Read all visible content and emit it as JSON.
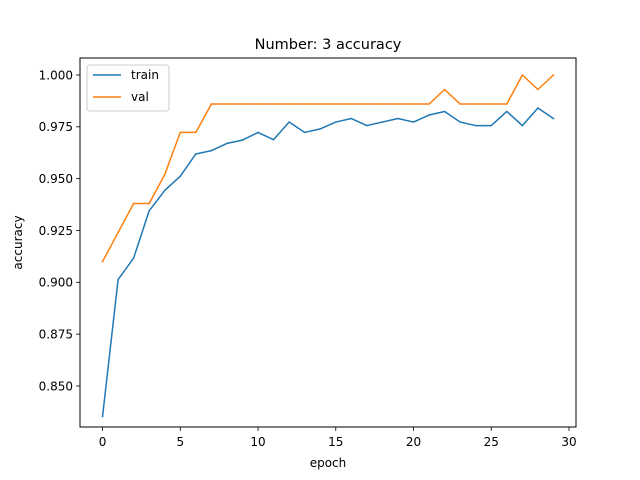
{
  "chart_data": {
    "type": "line",
    "title": "Number: 3 accuracy",
    "xlabel": "epoch",
    "ylabel": "accuracy",
    "xlim": [
      -1.45,
      30.45
    ],
    "ylim": [
      0.8302,
      1.0082
    ],
    "xticks": [
      0,
      5,
      10,
      15,
      20,
      25,
      30
    ],
    "yticks": [
      0.85,
      0.875,
      0.9,
      0.925,
      0.95,
      0.975,
      1.0
    ],
    "ytick_labels": [
      "0.850",
      "0.875",
      "0.900",
      "0.925",
      "0.950",
      "0.975",
      "1.000"
    ],
    "grid": false,
    "legend_position": "top-left",
    "x": [
      0,
      1,
      2,
      3,
      4,
      5,
      6,
      7,
      8,
      9,
      10,
      11,
      12,
      13,
      14,
      15,
      16,
      17,
      18,
      19,
      20,
      21,
      22,
      23,
      24,
      25,
      26,
      27,
      28,
      29
    ],
    "series": [
      {
        "name": "train",
        "color": "#1f77b4",
        "values": [
          0.8353,
          0.9013,
          0.9117,
          0.9345,
          0.9443,
          0.9512,
          0.9619,
          0.9635,
          0.967,
          0.9686,
          0.9723,
          0.9688,
          0.9773,
          0.9723,
          0.974,
          0.9773,
          0.979,
          0.9756,
          0.9773,
          0.979,
          0.9773,
          0.9807,
          0.9824,
          0.9773,
          0.9756,
          0.9756,
          0.9824,
          0.9756,
          0.9841,
          0.979
        ]
      },
      {
        "name": "val",
        "color": "#ff7f0e",
        "values": [
          0.91,
          0.924,
          0.938,
          0.938,
          0.952,
          0.9723,
          0.9723,
          0.986,
          0.986,
          0.986,
          0.986,
          0.986,
          0.986,
          0.986,
          0.986,
          0.986,
          0.986,
          0.986,
          0.986,
          0.986,
          0.986,
          0.986,
          0.993,
          0.986,
          0.986,
          0.986,
          0.986,
          1.0,
          0.993,
          1.0
        ]
      }
    ]
  }
}
